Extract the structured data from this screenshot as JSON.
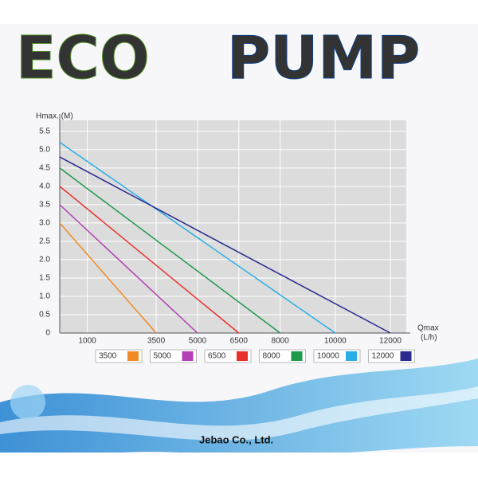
{
  "chart_data": {
    "type": "line",
    "title": [
      "ECO",
      "PUMP"
    ],
    "y_label": "Hmax. (M)",
    "x_label": [
      "Qmax",
      "(L/h)"
    ],
    "xlim": [
      0,
      12000
    ],
    "xticks": [
      0,
      1000,
      3500,
      5000,
      6500,
      8000,
      10000,
      12000
    ],
    "ylim": [
      0,
      5.8
    ],
    "yticks": [
      0,
      0.5,
      {
        "value": 1,
        "label": "1.0"
      },
      1.5,
      {
        "value": 2,
        "label": "2.0"
      },
      2.5,
      {
        "value": 3,
        "label": "3.0"
      },
      3.5,
      {
        "value": 4,
        "label": "4.0"
      },
      4.5,
      {
        "value": 5,
        "label": "5.0"
      },
      5.5
    ],
    "grid": true,
    "series": [
      {
        "name": "3500",
        "color": "#f08a24",
        "x": [
          0,
          3500
        ],
        "values": [
          3.0,
          0
        ]
      },
      {
        "name": "5000",
        "color": "#b23fb5",
        "x": [
          0,
          5000
        ],
        "values": [
          3.5,
          0
        ]
      },
      {
        "name": "6500",
        "color": "#e8312c",
        "x": [
          0,
          6500
        ],
        "values": [
          4.0,
          0
        ]
      },
      {
        "name": "8000",
        "color": "#1e9a4a",
        "x": [
          0,
          8000
        ],
        "values": [
          4.5,
          0
        ]
      },
      {
        "name": "10000",
        "color": "#2aaee6",
        "x": [
          0,
          10000
        ],
        "values": [
          5.2,
          0
        ]
      },
      {
        "name": "12000",
        "color": "#2a2a8f",
        "x": [
          0,
          12000
        ],
        "values": [
          4.8,
          0
        ]
      }
    ],
    "footer": "Jebao Co., Ltd."
  }
}
